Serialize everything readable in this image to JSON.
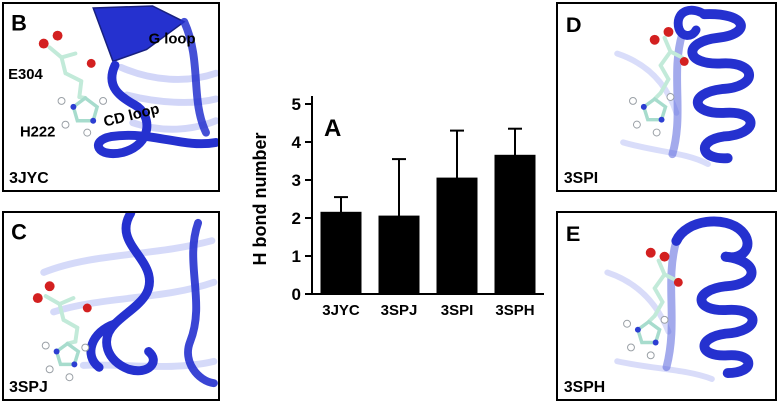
{
  "panels": {
    "b": {
      "letter": "B",
      "pdb_id": "3JYC",
      "annotations": {
        "g_loop": "G loop",
        "e304": "E304",
        "h222": "H222",
        "cd_loop": "CD loop"
      }
    },
    "c": {
      "letter": "C",
      "pdb_id": "3SPJ"
    },
    "d": {
      "letter": "D",
      "pdb_id": "3SPI"
    },
    "e": {
      "letter": "E",
      "pdb_id": "3SPH"
    }
  },
  "chart_data": {
    "type": "bar",
    "panel_letter": "A",
    "title": "",
    "xlabel": "",
    "ylabel": "H bond number",
    "categories": [
      "3JYC",
      "3SPJ",
      "3SPI",
      "3SPH"
    ],
    "values": [
      2.15,
      2.05,
      3.05,
      3.65
    ],
    "errors_upper": [
      0.4,
      1.5,
      1.25,
      0.7
    ],
    "ylim": [
      0,
      5
    ],
    "yticks": [
      0,
      1,
      2,
      3,
      4,
      5
    ],
    "bar_color": "#000000",
    "axis_color": "#000000",
    "grid": false,
    "legend": false
  },
  "colors": {
    "ribbon_blue": "#2531cf",
    "ribbon_light": "#8a96ef",
    "carbon_stick": "#c2ead9",
    "ring_stick": "#a7dccd",
    "oxygen_red": "#d32020",
    "nitrogen_blue": "#2c3ed2",
    "hydrogen_white": "#ffffff"
  }
}
